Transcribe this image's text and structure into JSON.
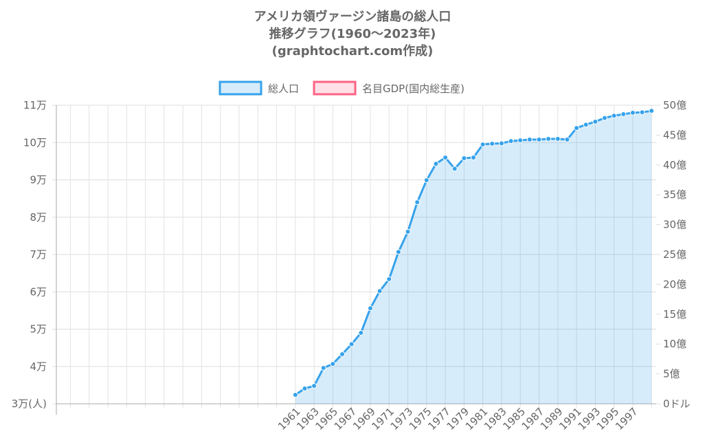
{
  "chart_data": {
    "type": "line",
    "title": [
      "アメリカ領ヴァージン諸島の総人口",
      "推移グラフ(1960〜2023年)",
      "(graphtochart.com作成)"
    ],
    "categories": [
      null,
      null,
      null,
      null,
      null,
      null,
      null,
      null,
      null,
      null,
      null,
      null,
      null,
      null,
      null,
      null,
      null,
      null,
      null,
      null,
      null,
      null,
      null,
      null,
      null,
      "1961",
      null,
      "1963",
      null,
      "1965",
      null,
      "1967",
      null,
      "1969",
      null,
      "1971",
      null,
      "1973",
      null,
      "1975",
      null,
      "1977",
      null,
      "1979",
      null,
      "1981",
      null,
      "1983",
      null,
      "1985",
      null,
      "1987",
      null,
      "1989",
      null,
      "1991",
      null,
      "1993",
      null,
      "1995",
      null,
      "1997",
      null,
      null
    ],
    "series": [
      {
        "name": "総人口",
        "color": "#36a2eb",
        "values": [
          null,
          null,
          null,
          null,
          null,
          null,
          null,
          null,
          null,
          null,
          null,
          null,
          null,
          null,
          null,
          null,
          null,
          null,
          null,
          null,
          null,
          null,
          null,
          null,
          null,
          32400,
          34100,
          34800,
          39600,
          40700,
          43300,
          46000,
          49000,
          55600,
          60200,
          63400,
          70700,
          76100,
          84000,
          89900,
          94300,
          96000,
          93000,
          95800,
          96000,
          99500,
          99700,
          99800,
          100400,
          100600,
          100800,
          100800,
          101000,
          101000,
          100800,
          103900,
          104800,
          105600,
          106600,
          107200,
          107600,
          108000,
          108100,
          108500
        ]
      },
      {
        "name": "名目GDP(国内総生産)",
        "color": "#ff6384",
        "axis": "y2",
        "values": [
          null,
          null,
          null,
          null,
          null,
          null,
          null,
          null,
          null,
          null,
          null,
          null,
          null,
          null,
          null,
          null,
          null,
          null,
          null,
          null,
          null,
          null,
          null,
          null,
          null,
          null,
          null,
          null,
          null,
          null,
          null,
          null,
          null,
          null,
          null,
          null,
          null,
          null,
          null,
          null,
          null,
          null,
          null,
          null,
          null,
          null,
          null,
          null,
          null,
          null,
          null,
          null,
          null,
          null,
          null,
          null,
          null,
          null,
          null,
          null,
          null,
          null,
          null,
          null
        ]
      }
    ],
    "ylim": [
      30000,
      110000
    ],
    "yticks": [
      {
        "value": 30000,
        "label": "3万(人)"
      },
      {
        "value": 40000,
        "label": "4万"
      },
      {
        "value": 50000,
        "label": "5万"
      },
      {
        "value": 60000,
        "label": "6万"
      },
      {
        "value": 70000,
        "label": "7万"
      },
      {
        "value": 80000,
        "label": "8万"
      },
      {
        "value": 90000,
        "label": "9万"
      },
      {
        "value": 100000,
        "label": "10万"
      },
      {
        "value": 110000,
        "label": "11万"
      }
    ],
    "y2lim": [
      0,
      5000000000
    ],
    "y2ticks": [
      {
        "value": 0,
        "label": "0ドル"
      },
      {
        "value": 500000000,
        "label": "5億"
      },
      {
        "value": 1000000000,
        "label": "10億"
      },
      {
        "value": 1500000000,
        "label": "15億"
      },
      {
        "value": 2000000000,
        "label": "20億"
      },
      {
        "value": 2500000000,
        "label": "25億"
      },
      {
        "value": 3000000000,
        "label": "30億"
      },
      {
        "value": 3500000000,
        "label": "35億"
      },
      {
        "value": 4000000000,
        "label": "40億"
      },
      {
        "value": 4500000000,
        "label": "45億"
      },
      {
        "value": 5000000000,
        "label": "50億"
      }
    ],
    "grid": true
  }
}
